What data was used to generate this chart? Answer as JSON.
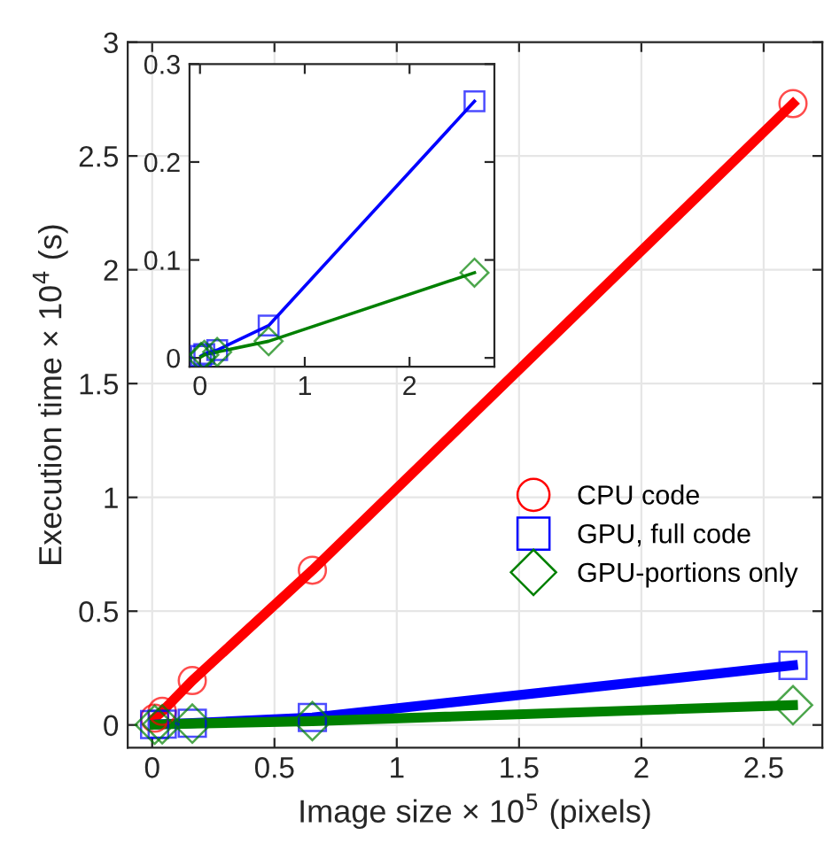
{
  "chart_data": [
    {
      "type": "line",
      "xlabel": "Image size × 10$^{5}$ (pixels)",
      "ylabel": "Execution time × 10$^{4}$ (s)",
      "x": [
        0.01,
        0.041,
        0.164,
        0.655,
        2.62
      ],
      "series": [
        {
          "name": "CPU code",
          "color": "#ff0000",
          "marker": "circle",
          "values": [
            0.03,
            0.06,
            0.195,
            0.68,
            2.73
          ]
        },
        {
          "name": "GPU, full code",
          "color": "#0000ff",
          "marker": "square",
          "values": [
            0.002,
            0.004,
            0.008,
            0.033,
            0.262
          ]
        },
        {
          "name": "GPU-portions only",
          "color": "#008000",
          "marker": "diamond",
          "values": [
            0.001,
            0.003,
            0.006,
            0.017,
            0.087
          ]
        }
      ],
      "xlim": [
        -0.1,
        2.74
      ],
      "ylim": [
        -0.1,
        3
      ],
      "xticks": [
        0,
        0.5,
        1,
        1.5,
        2,
        2.5
      ],
      "yticks": [
        0,
        0.5,
        1,
        1.5,
        2,
        2.5,
        3
      ],
      "grid": true,
      "legend": "right"
    },
    {
      "type": "line",
      "x": [
        0.01,
        0.041,
        0.164,
        0.655,
        2.62
      ],
      "series": [
        {
          "color": "#0000ff",
          "marker": "square",
          "values": [
            0.002,
            0.004,
            0.008,
            0.033,
            0.262
          ]
        },
        {
          "color": "#008000",
          "marker": "diamond",
          "values": [
            0.001,
            0.003,
            0.006,
            0.017,
            0.087
          ]
        }
      ],
      "xlim": [
        -0.1,
        2.81
      ],
      "ylim": [
        -0.009,
        0.3
      ],
      "xticks": [
        0,
        1,
        2
      ],
      "yticks": [
        0,
        0.1,
        0.2,
        0.3
      ],
      "grid": false
    }
  ]
}
